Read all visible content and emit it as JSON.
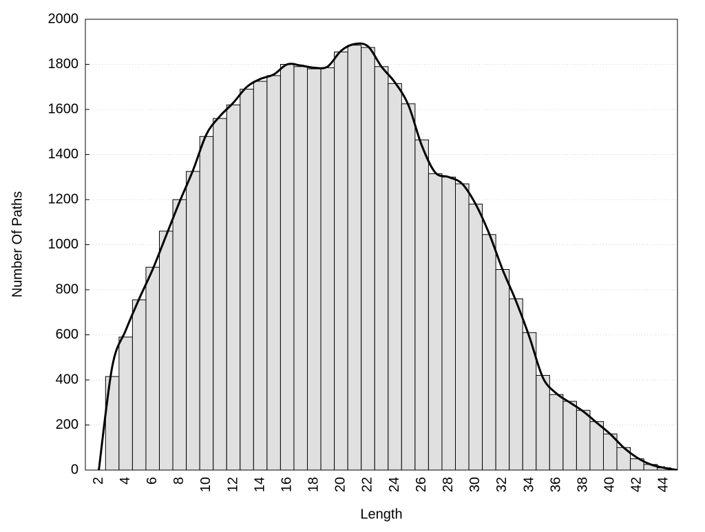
{
  "chart_data": {
    "type": "histogram",
    "xlabel": "Length",
    "ylabel": "Number Of Paths",
    "bins": [
      2.5,
      3.5,
      4.5,
      5.5,
      6.5,
      7.5,
      8.5,
      9.5,
      10.5,
      11.5,
      12.5,
      13.5,
      14.5,
      15.5,
      16.5,
      17.5,
      18.5,
      19.5,
      20.5,
      21.5,
      22.5,
      23.5,
      24.5,
      25.5,
      26.5,
      27.5,
      28.5,
      29.5,
      30.5,
      31.5,
      32.5,
      33.5,
      34.5,
      35.5,
      36.5,
      37.5,
      38.5,
      39.5,
      40.5,
      41.5,
      42.5,
      43.5,
      44.5
    ],
    "values": [
      415,
      590,
      755,
      900,
      1060,
      1200,
      1325,
      1480,
      1560,
      1620,
      1690,
      1725,
      1750,
      1800,
      1790,
      1780,
      1785,
      1855,
      1885,
      1875,
      1790,
      1715,
      1625,
      1465,
      1315,
      1300,
      1270,
      1180,
      1045,
      890,
      760,
      610,
      420,
      335,
      305,
      265,
      215,
      160,
      100,
      50,
      25,
      10
    ],
    "color": "#e0e0e0",
    "xlim": [
      1,
      45
    ],
    "ylim": [
      0,
      2000
    ],
    "xticks": [
      2,
      4,
      6,
      8,
      10,
      12,
      14,
      16,
      18,
      20,
      22,
      24,
      26,
      28,
      30,
      32,
      34,
      36,
      38,
      40,
      42,
      44
    ],
    "yticks": [
      0,
      200,
      400,
      600,
      800,
      1000,
      1200,
      1400,
      1600,
      1800,
      2000
    ],
    "grid": true,
    "curve": {
      "type": "line",
      "color": "#000000",
      "x": [
        2,
        3,
        4,
        5,
        6,
        7,
        8,
        9,
        10,
        11,
        12,
        13,
        14,
        15,
        16,
        17,
        18,
        19,
        20,
        21,
        22,
        23,
        24,
        25,
        26,
        27,
        28,
        29,
        30,
        31,
        32,
        33,
        34,
        35,
        36,
        37,
        38,
        39,
        40,
        41,
        42,
        43,
        44,
        45
      ],
      "values": [
        0,
        460,
        620,
        760,
        890,
        1040,
        1190,
        1330,
        1490,
        1570,
        1630,
        1700,
        1735,
        1755,
        1800,
        1795,
        1785,
        1790,
        1860,
        1890,
        1880,
        1790,
        1720,
        1620,
        1440,
        1320,
        1300,
        1270,
        1180,
        1050,
        890,
        750,
        590,
        410,
        340,
        300,
        260,
        210,
        160,
        100,
        55,
        25,
        10,
        0
      ]
    }
  }
}
